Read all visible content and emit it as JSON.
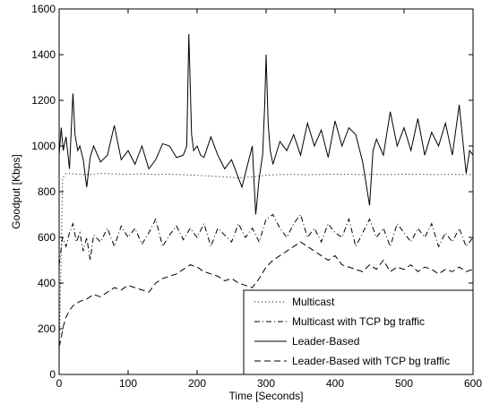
{
  "chart_data": {
    "type": "line",
    "title": "",
    "xlabel": "Time [Seconds]",
    "ylabel": "Goodput [Kbps]",
    "xlim": [
      0,
      600
    ],
    "ylim": [
      0,
      1600
    ],
    "xticks": [
      0,
      100,
      200,
      300,
      400,
      500,
      600
    ],
    "yticks": [
      0,
      200,
      400,
      600,
      800,
      1000,
      1200,
      1400,
      1600
    ],
    "grid": false,
    "legend_position": "bottom-right",
    "series": [
      {
        "name": "Multicast",
        "style": "dotted",
        "x": [
          0,
          5,
          10,
          20,
          40,
          60,
          80,
          100,
          120,
          140,
          160,
          180,
          200,
          220,
          240,
          260,
          280,
          300,
          320,
          340,
          360,
          380,
          400,
          420,
          440,
          460,
          480,
          500,
          520,
          540,
          560,
          580,
          600
        ],
        "values": [
          50,
          860,
          880,
          878,
          875,
          880,
          878,
          876,
          878,
          875,
          877,
          874,
          872,
          868,
          865,
          860,
          865,
          872,
          875,
          876,
          874,
          876,
          877,
          876,
          875,
          876,
          875,
          877,
          876,
          875,
          876,
          875,
          875
        ]
      },
      {
        "name": "Multicast with TCP bg traffic",
        "style": "dashdot",
        "x": [
          0,
          5,
          10,
          15,
          20,
          25,
          30,
          35,
          40,
          45,
          50,
          60,
          70,
          80,
          90,
          100,
          110,
          120,
          130,
          140,
          150,
          160,
          170,
          180,
          190,
          200,
          210,
          220,
          230,
          240,
          250,
          260,
          270,
          280,
          290,
          300,
          310,
          320,
          330,
          340,
          350,
          360,
          370,
          380,
          390,
          400,
          410,
          420,
          430,
          440,
          450,
          460,
          470,
          480,
          490,
          500,
          510,
          520,
          530,
          540,
          550,
          560,
          570,
          580,
          590,
          600
        ],
        "values": [
          480,
          600,
          560,
          620,
          660,
          580,
          620,
          540,
          600,
          500,
          610,
          580,
          640,
          560,
          650,
          600,
          640,
          570,
          620,
          680,
          560,
          610,
          650,
          590,
          640,
          600,
          660,
          560,
          640,
          610,
          580,
          660,
          600,
          640,
          580,
          680,
          700,
          640,
          600,
          660,
          700,
          600,
          640,
          580,
          660,
          620,
          600,
          680,
          560,
          620,
          680,
          600,
          640,
          560,
          660,
          620,
          580,
          640,
          600,
          660,
          560,
          620,
          580,
          640,
          560,
          600
        ]
      },
      {
        "name": "Leader-Based",
        "style": "solid",
        "x": [
          0,
          3,
          6,
          10,
          15,
          20,
          23,
          27,
          30,
          35,
          40,
          45,
          50,
          60,
          70,
          80,
          90,
          100,
          110,
          120,
          130,
          140,
          150,
          160,
          170,
          180,
          185,
          188,
          192,
          195,
          200,
          205,
          210,
          220,
          230,
          240,
          250,
          260,
          265,
          270,
          275,
          280,
          285,
          290,
          295,
          298,
          300,
          303,
          306,
          310,
          320,
          330,
          340,
          350,
          360,
          370,
          380,
          390,
          400,
          410,
          420,
          430,
          440,
          450,
          455,
          460,
          470,
          480,
          490,
          500,
          510,
          520,
          530,
          540,
          550,
          560,
          570,
          580,
          590,
          595,
          600
        ],
        "values": [
          960,
          1080,
          980,
          1040,
          900,
          1230,
          1050,
          980,
          1000,
          940,
          820,
          950,
          1000,
          930,
          960,
          1090,
          940,
          980,
          920,
          1000,
          900,
          940,
          1010,
          1000,
          950,
          960,
          1000,
          1490,
          1050,
          980,
          1000,
          960,
          950,
          1040,
          960,
          900,
          940,
          860,
          820,
          880,
          940,
          1000,
          700,
          860,
          960,
          1180,
          1400,
          1100,
          980,
          920,
          1020,
          980,
          1050,
          960,
          1100,
          1000,
          1070,
          950,
          1110,
          1000,
          1080,
          1050,
          930,
          740,
          980,
          1030,
          960,
          1150,
          1000,
          1080,
          980,
          1120,
          960,
          1060,
          1000,
          1100,
          960,
          1180,
          880,
          980,
          960
        ]
      },
      {
        "name": "Leader-Based with TCP bg traffic",
        "style": "dashed",
        "x": [
          0,
          3,
          6,
          10,
          15,
          20,
          30,
          40,
          50,
          60,
          70,
          80,
          90,
          100,
          110,
          120,
          130,
          140,
          150,
          160,
          170,
          180,
          190,
          200,
          210,
          220,
          230,
          240,
          250,
          260,
          270,
          280,
          290,
          300,
          310,
          320,
          330,
          340,
          350,
          360,
          370,
          380,
          390,
          400,
          410,
          420,
          430,
          440,
          450,
          460,
          470,
          480,
          490,
          500,
          510,
          520,
          530,
          540,
          550,
          560,
          570,
          580,
          590,
          600
        ],
        "values": [
          120,
          160,
          210,
          250,
          280,
          300,
          320,
          330,
          350,
          340,
          360,
          380,
          370,
          390,
          380,
          370,
          360,
          400,
          420,
          430,
          440,
          460,
          480,
          470,
          450,
          440,
          430,
          410,
          420,
          400,
          390,
          380,
          420,
          470,
          500,
          520,
          540,
          560,
          580,
          560,
          540,
          520,
          500,
          520,
          480,
          470,
          460,
          450,
          480,
          460,
          500,
          450,
          470,
          460,
          480,
          450,
          470,
          460,
          440,
          460,
          450,
          470,
          450,
          460
        ]
      }
    ]
  }
}
